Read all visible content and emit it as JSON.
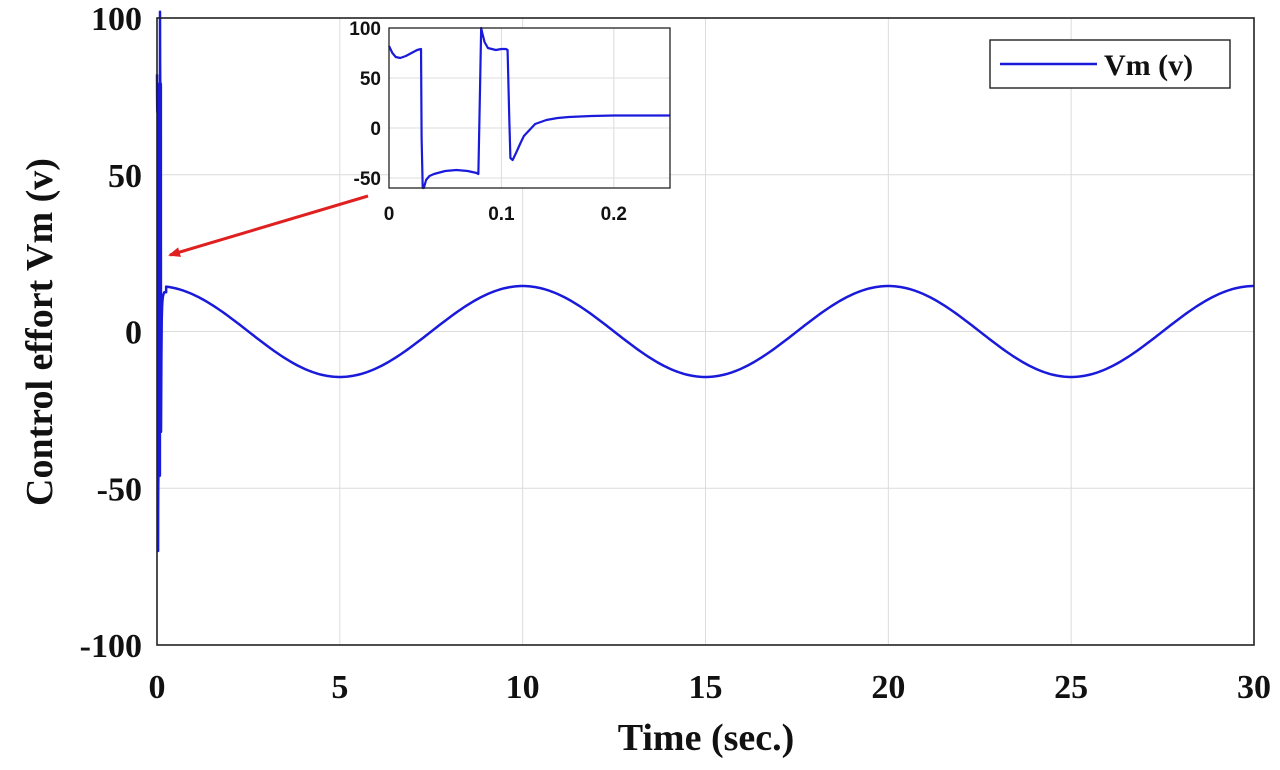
{
  "chart_data": [
    {
      "id": "main",
      "type": "line",
      "xlabel": "Time (sec.)",
      "ylabel": "Control effort Vm (v)",
      "xlim": [
        0,
        30
      ],
      "ylim": [
        -100,
        100
      ],
      "xticks": [
        "0",
        "5",
        "10",
        "15",
        "20",
        "25",
        "30"
      ],
      "yticks": [
        "-100",
        "-50",
        "0",
        "50",
        "100"
      ],
      "grid": true,
      "legend": {
        "placement": "top-right",
        "entries": [
          "Vm (v)"
        ]
      },
      "series": [
        {
          "name": "Vm (v)",
          "color": "#1a1adb",
          "description_points": {
            "x": [
              0,
              0.03,
              0.08,
              0.11,
              0.15,
              0.25,
              2.5,
              5,
              7.5,
              10,
              12.5,
              15,
              17.5,
              20,
              22.5,
              25,
              27.5,
              30
            ],
            "y": [
              82,
              -70,
              100,
              -32,
              2,
              14.5,
              0,
              -14.5,
              0,
              14.5,
              0,
              -14.5,
              0,
              14.5,
              0,
              -14.5,
              0,
              14.5
            ]
          },
          "steady_state": {
            "shape": "cosine",
            "amplitude": 14.5,
            "period": 10
          }
        }
      ]
    },
    {
      "id": "inset",
      "type": "line",
      "xlim": [
        0,
        0.25
      ],
      "ylim": [
        -60,
        100
      ],
      "xticks": [
        "0",
        "0.1",
        "0.2"
      ],
      "yticks": [
        "100",
        "50",
        "0",
        "-50"
      ],
      "grid": true,
      "series": [
        {
          "color": "#1a1adb",
          "x": [
            0,
            0.003,
            0.006,
            0.01,
            0.015,
            0.02,
            0.025,
            0.0285,
            0.029,
            0.03,
            0.031,
            0.033,
            0.036,
            0.04,
            0.05,
            0.06,
            0.07,
            0.078,
            0.0795,
            0.081,
            0.082,
            0.083,
            0.085,
            0.088,
            0.095,
            0.1,
            0.104,
            0.1055,
            0.107,
            0.108,
            0.11,
            0.113,
            0.117,
            0.12,
            0.125,
            0.13,
            0.14,
            0.15,
            0.16,
            0.18,
            0.2,
            0.22,
            0.25
          ],
          "y": [
            82,
            75,
            71,
            70,
            72,
            75,
            78,
            79,
            -10,
            -70,
            -60,
            -52,
            -48,
            -46,
            -43,
            -42,
            -43,
            -45,
            -46,
            40,
            102,
            95,
            86,
            80,
            78,
            79,
            79,
            78,
            10,
            -30,
            -32,
            -25,
            -15,
            -8,
            -2,
            4,
            8,
            10,
            11,
            12,
            12.5,
            12.5,
            12.5
          ]
        }
      ]
    }
  ]
}
